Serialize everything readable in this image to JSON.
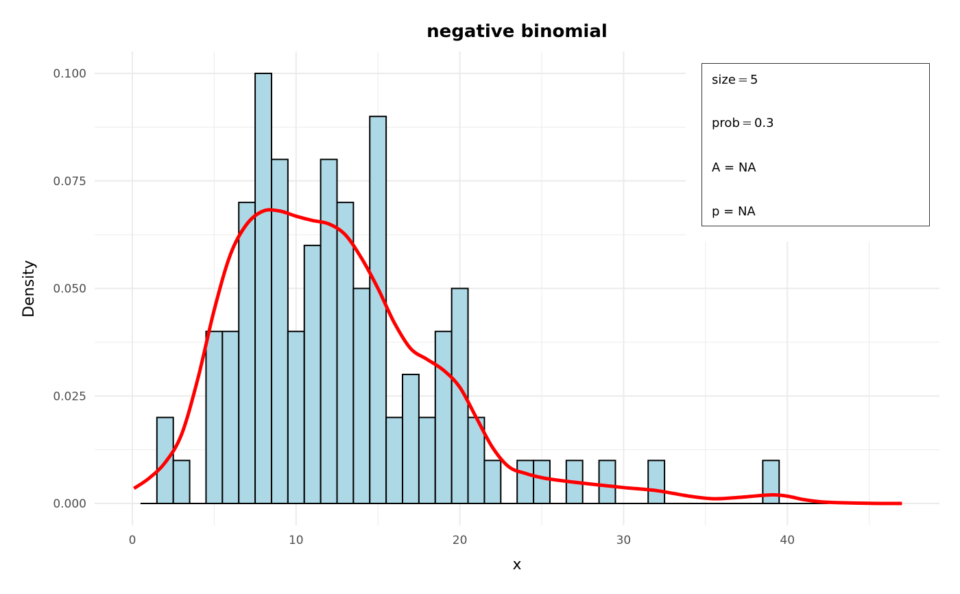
{
  "chart_data": {
    "type": "bar",
    "title": "negative binomial",
    "xlabel": "x",
    "ylabel": "Density",
    "xlim": [
      -2.5,
      49
    ],
    "ylim": [
      -0.004,
      0.104
    ],
    "x_ticks": [
      0,
      10,
      20,
      30,
      40
    ],
    "x_tick_labels": [
      "0",
      "10",
      "20",
      "30",
      "40"
    ],
    "y_ticks": [
      0,
      0.025,
      0.05,
      0.075,
      0.1
    ],
    "y_tick_labels": [
      "0.000",
      "0.025",
      "0.050",
      "0.075",
      "0.100"
    ],
    "grid": true,
    "histogram": {
      "bin_width": 1,
      "fill": "#add8e6",
      "stroke": "#000000",
      "bins": [
        1,
        2,
        3,
        4,
        5,
        6,
        7,
        8,
        9,
        10,
        11,
        12,
        13,
        14,
        15,
        16,
        17,
        18,
        19,
        20,
        21,
        22,
        23,
        24,
        25,
        26,
        27,
        28,
        29,
        30,
        31,
        32,
        33,
        34,
        35,
        36,
        37,
        38,
        39,
        40,
        41,
        42
      ],
      "values": [
        0,
        0.02,
        0.01,
        0,
        0.04,
        0.04,
        0.07,
        0.1,
        0.08,
        0.04,
        0.06,
        0.08,
        0.07,
        0.05,
        0.09,
        0.02,
        0.03,
        0.02,
        0.04,
        0.05,
        0.02,
        0.01,
        0,
        0.01,
        0.01,
        0,
        0.01,
        0,
        0.01,
        0,
        0,
        0.01,
        0,
        0,
        0,
        0,
        0,
        0,
        0.01,
        0,
        0,
        0
      ]
    },
    "density": {
      "color": "#ff0000",
      "x": [
        0.1,
        1,
        2,
        3,
        4,
        5,
        6,
        7,
        8,
        9,
        10,
        11,
        12,
        13,
        14,
        15,
        16,
        17,
        18,
        19,
        20,
        21,
        22,
        23,
        24,
        25,
        26,
        28,
        30,
        32,
        34,
        35.5,
        37,
        39,
        40,
        41,
        42,
        43,
        45,
        47
      ],
      "y": [
        0.0035,
        0.0058,
        0.0095,
        0.016,
        0.029,
        0.045,
        0.058,
        0.065,
        0.068,
        0.068,
        0.0668,
        0.0658,
        0.065,
        0.0625,
        0.057,
        0.05,
        0.042,
        0.036,
        0.0335,
        0.031,
        0.027,
        0.02,
        0.013,
        0.0085,
        0.007,
        0.006,
        0.0054,
        0.0045,
        0.0037,
        0.003,
        0.0017,
        0.0011,
        0.0014,
        0.002,
        0.0017,
        0.0009,
        0.0004,
        0.0002,
        3e-05,
        0
      ]
    },
    "legend": {
      "placement": "top-right",
      "lines": [
        {
          "name": "size",
          "op": "=",
          "value": "5"
        },
        {
          "name": "prob",
          "op": "=",
          "value": "0.3"
        },
        {
          "text": "A = NA"
        },
        {
          "text": "p = NA"
        }
      ]
    }
  }
}
